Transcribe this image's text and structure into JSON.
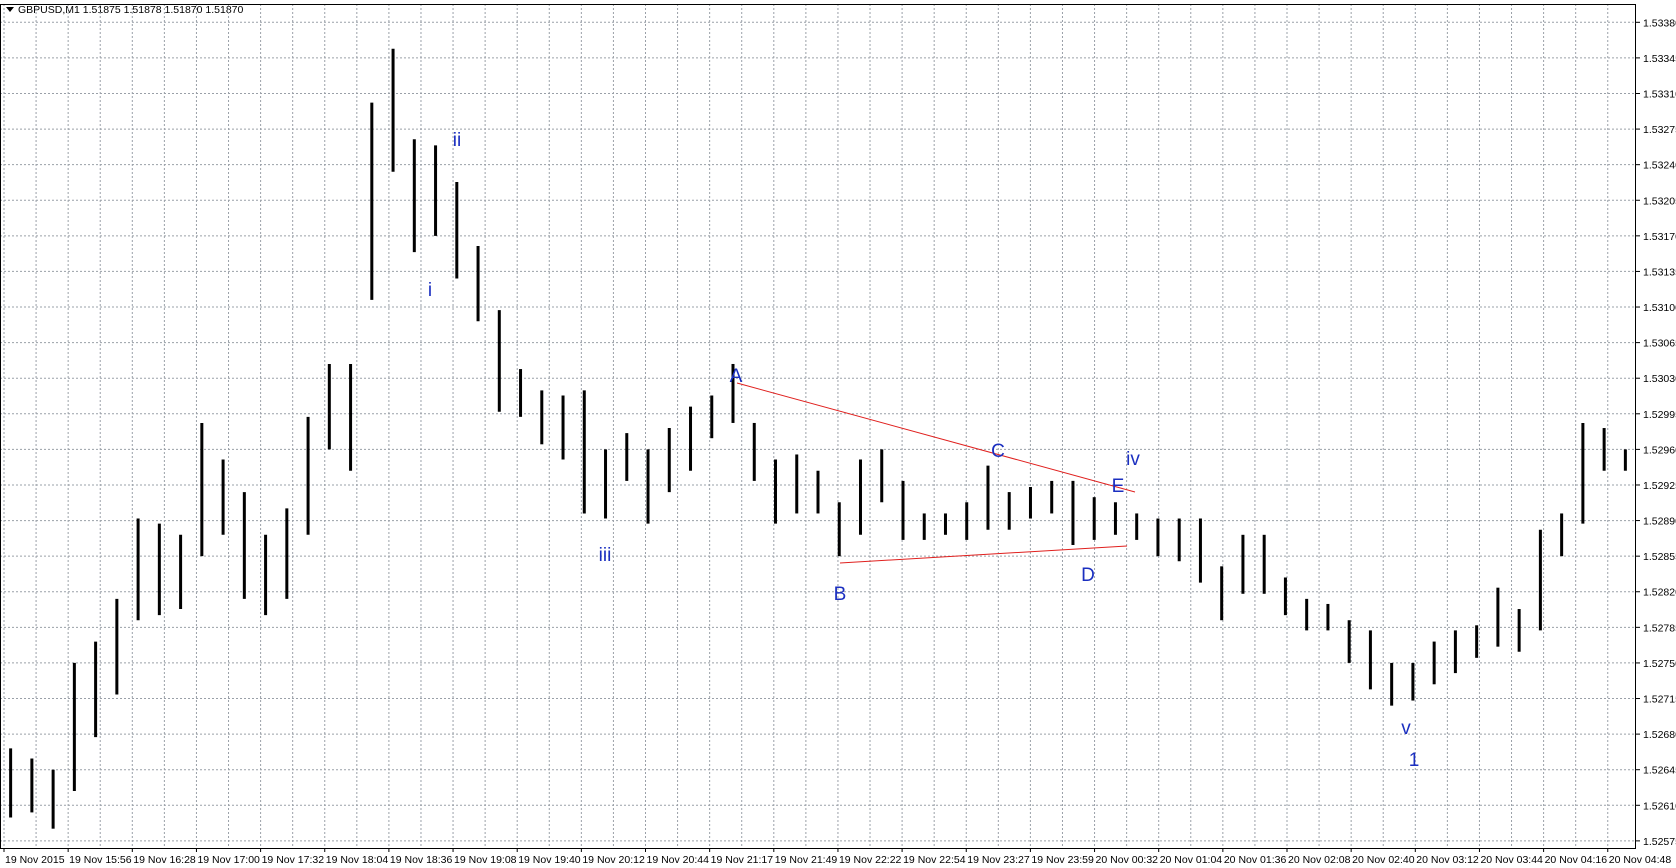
{
  "chart_data": {
    "type": "hl_bars",
    "title": "GBPUSD,M1  1.51875 1.51878 1.51870 1.51870",
    "color": "#000000",
    "grid": true,
    "ylim": [
      1.52568,
      1.53398
    ],
    "yticks": [
      1.52575,
      {
        "value": 1.5261,
        "label": "1.52610"
      },
      1.52645,
      {
        "value": 1.5268,
        "label": "1.52680"
      },
      1.52715,
      {
        "value": 1.5275,
        "label": "1.52750"
      },
      1.52785,
      {
        "value": 1.5282,
        "label": "1.52820"
      },
      1.52855,
      {
        "value": 1.5289,
        "label": "1.52890"
      },
      1.52925,
      {
        "value": 1.5296,
        "label": "1.52960"
      },
      1.52995,
      {
        "value": 1.5303,
        "label": "1.53030"
      },
      1.53065,
      {
        "value": 1.531,
        "label": "1.53100"
      },
      1.53135,
      {
        "value": 1.5317,
        "label": "1.53170"
      },
      1.53205,
      {
        "value": 1.5324,
        "label": "1.53240"
      },
      1.53275,
      {
        "value": 1.5331,
        "label": "1.53310"
      },
      1.53345,
      {
        "value": 1.5338,
        "label": "1.53380"
      }
    ],
    "time_labels": [
      "19 Nov 2015",
      "19 Nov 15:56",
      "19 Nov 16:28",
      "19 Nov 17:00",
      "19 Nov 17:32",
      "19 Nov 18:04",
      "19 Nov 18:36",
      "19 Nov 19:08",
      "19 Nov 19:40",
      "19 Nov 20:12",
      "19 Nov 20:44",
      "19 Nov 21:17",
      "19 Nov 21:49",
      "19 Nov 22:22",
      "19 Nov 22:54",
      "19 Nov 23:27",
      "19 Nov 23:59",
      "20 Nov 00:32",
      "20 Nov 01:04",
      "20 Nov 01:36",
      "20 Nov 02:08",
      "20 Nov 02:40",
      "20 Nov 03:12",
      "20 Nov 03:44",
      "20 Nov 04:16",
      "20 Nov 04:48"
    ],
    "high": [
      1.52666,
      1.52656,
      1.52645,
      1.5275,
      1.52771,
      1.52813,
      1.52892,
      1.52887,
      1.52876,
      1.52986,
      1.5295,
      1.52918,
      1.52876,
      1.52902,
      1.52992,
      1.53044,
      1.53044,
      1.53301,
      1.53354,
      1.53265,
      1.53259,
      1.53223,
      1.5316,
      1.53097,
      1.53039,
      1.53018,
      1.53013,
      1.53018,
      1.5296,
      1.52976,
      1.5296,
      1.52981,
      1.53002,
      1.53013,
      1.53044,
      1.52986,
      1.5295,
      1.52955,
      1.52939,
      1.52908,
      1.5295,
      1.5296,
      1.52929,
      1.52897,
      1.52897,
      1.52908,
      1.52944,
      1.52918,
      1.52923,
      1.52929,
      1.52929,
      1.52913,
      1.52908,
      1.52897,
      1.52892,
      1.52892,
      1.52892,
      1.52845,
      1.52876,
      1.52876,
      1.52834,
      1.52813,
      1.52808,
      1.52792,
      1.52782,
      1.5275,
      1.5275,
      1.52771,
      1.52782,
      1.52787,
      1.52824,
      1.52803,
      1.52881,
      1.52897,
      1.52986,
      1.52981,
      1.5296
    ],
    "low": [
      1.52598,
      1.52603,
      1.52587,
      1.52624,
      1.52677,
      1.52719,
      1.52792,
      1.52797,
      1.52803,
      1.52855,
      1.52876,
      1.52813,
      1.52797,
      1.52813,
      1.52876,
      1.5296,
      1.52939,
      1.53107,
      1.53233,
      1.53154,
      1.5317,
      1.53128,
      1.53086,
      1.52997,
      1.52992,
      1.52965,
      1.5295,
      1.52897,
      1.52892,
      1.52929,
      1.52887,
      1.52918,
      1.52939,
      1.52971,
      1.52986,
      1.52929,
      1.52887,
      1.52897,
      1.52897,
      1.52855,
      1.52876,
      1.52908,
      1.52871,
      1.52871,
      1.52876,
      1.52871,
      1.52881,
      1.52881,
      1.52892,
      1.52897,
      1.52866,
      1.52871,
      1.52876,
      1.52871,
      1.52855,
      1.5285,
      1.52829,
      1.52792,
      1.52818,
      1.52818,
      1.52797,
      1.52782,
      1.52782,
      1.5275,
      1.52724,
      1.52708,
      1.52713,
      1.52729,
      1.5274,
      1.52755,
      1.52766,
      1.52761,
      1.52782,
      1.52855,
      1.52887,
      1.52939,
      1.52939
    ],
    "annotations": [
      "ii",
      "i",
      "iii",
      "A",
      "B",
      "C",
      "D",
      "E",
      "iv",
      "v",
      "1"
    ]
  }
}
